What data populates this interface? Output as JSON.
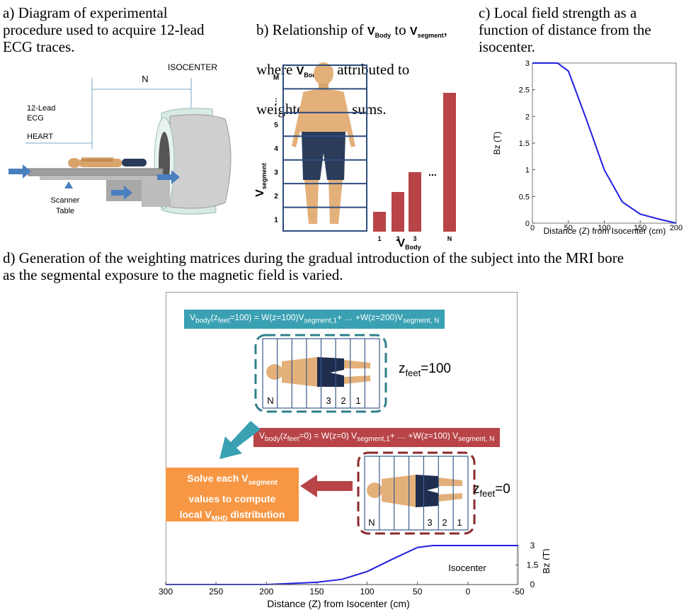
{
  "panel_a": {
    "caption": "a) Diagram of experimental\nprocedure used to acquire 12-lead\nECG traces.",
    "n_label": "N",
    "isocenter_label": "ISOCENTER",
    "ecg_label_line1": "12-Lead",
    "ecg_label_line2": "ECG",
    "heart_label": "HEART",
    "table_label_line1": "Scanner",
    "table_label_line2": "Table"
  },
  "panel_b": {
    "caption_pre": "b) Relationship of ",
    "vbody": "V",
    "vbody_sub": "Body",
    "caption_to": " to ",
    "vseg": "V",
    "vseg_sub": "segment",
    "caption_line1_end": ",",
    "caption_line2_pre": "where ",
    "caption_line2_post": " is attributed to",
    "caption_line3_pre": "weighted ",
    "caption_line3_post": " sums.",
    "y_axis_label": "V",
    "y_axis_sub": "segment",
    "segment_labels": [
      "1",
      "2",
      "3",
      "4",
      "5",
      "⋮",
      "M"
    ],
    "bar_labels": [
      "1",
      "2",
      "3",
      "N"
    ],
    "bar_values": [
      1,
      2,
      3,
      7
    ],
    "dots": "...",
    "x_axis_label": "V",
    "x_axis_sub": "Body"
  },
  "panel_c": {
    "caption": "c) Local field strength as a\nfunction of distance from the\nisocenter.",
    "chart_data": {
      "type": "line",
      "x": [
        0,
        35,
        50,
        75,
        100,
        125,
        150,
        175,
        200
      ],
      "y": [
        3,
        3,
        2.85,
        1.95,
        1.0,
        0.4,
        0.17,
        0.08,
        0.0
      ],
      "xlabel": "Distance (Z) from Isocenter (cm)",
      "ylabel": "Bz (T)",
      "xlim": [
        0,
        200
      ],
      "ylim": [
        0,
        3
      ],
      "xticks": [
        "0",
        "50",
        "100",
        "150",
        "200"
      ],
      "yticks": [
        "0",
        "0.5",
        "1",
        "1.5",
        "2",
        "2.5",
        "3"
      ],
      "line_color": "#1f1fe0"
    }
  },
  "panel_d": {
    "caption": "d) Generation of the weighting matrices during the gradual introduction of the subject into the MRI bore\nas the segmental exposure to the magnetic field is varied.",
    "eq_top": {
      "p1": "V",
      "s1": "body",
      "p2": "(z",
      "s2": "feet",
      "p3": "=100) = W(z=100)V",
      "s3": "segment,1",
      "p4": "+ … +W(z=200)V",
      "s4": "segment, N"
    },
    "eq_bottom": {
      "p1": "V",
      "s1": "body",
      "p2": "(z",
      "s2": "feet",
      "p3": "=0) = W(z=0) V",
      "s3": "segment,1",
      "p4": "+ … +W(z=100) V",
      "s4": "segment, N"
    },
    "zfeet_top": {
      "z": "z",
      "sub": "feet",
      "val": "=100"
    },
    "zfeet_bottom": {
      "z": "z",
      "sub": "feet",
      "val": "=0"
    },
    "strip_labels": [
      "N",
      "3",
      "2",
      "1"
    ],
    "solve_line1_pre": "Solve each V",
    "solve_line1_sub": "segment",
    "solve_line2": "values to compute",
    "solve_line3_pre": "local V",
    "solve_line3_sub": "MHD",
    "solve_line3_post": " distribution",
    "isocenter_label": "Isocenter",
    "colors": {
      "teal": "#3aa1b3",
      "red": "#b84448",
      "orange": "#f79643",
      "dashed_teal": "#2e7f8a",
      "dashed_red": "#8b2a2d"
    },
    "chart_data": {
      "type": "line",
      "x": [
        300,
        250,
        200,
        175,
        150,
        125,
        100,
        75,
        50,
        35,
        0,
        -50
      ],
      "y": [
        0,
        0,
        0,
        0.08,
        0.17,
        0.4,
        1.0,
        1.95,
        2.85,
        3,
        3,
        3
      ],
      "xlabel": "Distance (Z) from Isocenter (cm)",
      "ylabel": "Bz (T)",
      "xlim": [
        300,
        -50
      ],
      "ylim": [
        0,
        3
      ],
      "xticks": [
        "300",
        "250",
        "200",
        "150",
        "100",
        "50",
        "0",
        "-50"
      ],
      "yticks": [
        "0",
        "1.5",
        "3"
      ],
      "line_color": "#1f1fe0"
    }
  }
}
